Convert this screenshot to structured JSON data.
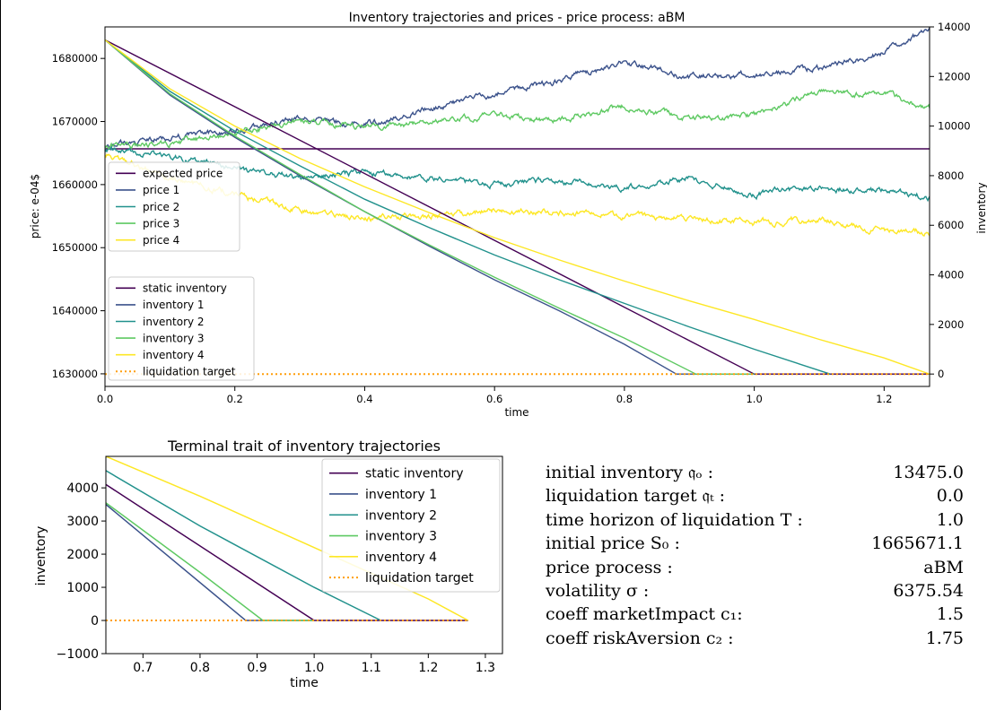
{
  "colors": {
    "static": "#440154",
    "s1": "#3b528b",
    "s2": "#21918c",
    "s3": "#5ec962",
    "s4": "#fde725",
    "target": "#ff9e0a"
  },
  "top_chart": {
    "title": "Inventory trajectories and prices - price process: aBM",
    "xlabel": "time",
    "ylabel_left": "price: e-04$",
    "ylabel_right": "inventory",
    "price_ticks": [
      "1630000",
      "1640000",
      "1650000",
      "1660000",
      "1670000",
      "1680000"
    ],
    "inv_ticks": [
      "0",
      "2000",
      "4000",
      "6000",
      "8000",
      "10000",
      "12000",
      "14000"
    ],
    "x_ticks": [
      "0.0",
      "0.2",
      "0.4",
      "0.6",
      "0.8",
      "1.0",
      "1.2"
    ],
    "legend_prices": [
      "expected price",
      "price 1",
      "price 2",
      "price 3",
      "price 4"
    ],
    "legend_inventory": [
      "static inventory",
      "inventory 1",
      "inventory 2",
      "inventory 3",
      "inventory 4",
      "liquidation target"
    ]
  },
  "bottom_chart": {
    "title": "Terminal trait of inventory trajectories",
    "xlabel": "time",
    "ylabel": "inventory",
    "y_ticks": [
      "−1000",
      "0",
      "1000",
      "2000",
      "3000",
      "4000"
    ],
    "x_ticks": [
      "0.7",
      "0.8",
      "0.9",
      "1.0",
      "1.1",
      "1.2",
      "1.3"
    ],
    "legend": [
      "static inventory",
      "inventory 1",
      "inventory 2",
      "inventory 3",
      "inventory 4",
      "liquidation target"
    ]
  },
  "parameters": [
    {
      "label": "initial inventory 𝔮ₒ :",
      "value": "13475.0"
    },
    {
      "label": "liquidation target 𝔮ₜ :",
      "value": "0.0"
    },
    {
      "label": "time horizon of liquidation T :",
      "value": "1.0"
    },
    {
      "label": "initial price S₀ :",
      "value": "1665671.1"
    },
    {
      "label": "price process :",
      "value": "aBM"
    },
    {
      "label": "volatility σ :",
      "value": "6375.54"
    },
    {
      "label": "coeff marketImpact c₁:",
      "value": "1.5"
    },
    {
      "label": "coeff riskAversion c₂ :",
      "value": "1.75"
    }
  ],
  "chart_data": [
    {
      "type": "line",
      "title": "Inventory trajectories and prices - price process: aBM",
      "xlabel": "time",
      "ylabel": "price: e-04$",
      "y2label": "inventory",
      "xlim": [
        0,
        1.27
      ],
      "ylim": [
        1628000,
        1685000
      ],
      "y2lim": [
        -500,
        14000
      ],
      "price_series": [
        {
          "name": "expected price",
          "x": [
            0,
            1.27
          ],
          "values": [
            1665671,
            1665671
          ]
        },
        {
          "name": "price 1",
          "x": [
            0,
            0.1,
            0.2,
            0.3,
            0.4,
            0.5,
            0.6,
            0.7,
            0.8,
            0.9,
            1.0,
            1.1,
            1.2,
            1.27
          ],
          "values": [
            1666000,
            1667500,
            1668500,
            1670500,
            1669500,
            1672000,
            1674500,
            1676500,
            1679500,
            1677000,
            1677500,
            1678500,
            1681000,
            1684500
          ]
        },
        {
          "name": "price 2",
          "x": [
            0,
            0.1,
            0.2,
            0.3,
            0.4,
            0.5,
            0.6,
            0.7,
            0.8,
            0.9,
            1.0,
            1.1,
            1.2,
            1.27
          ],
          "values": [
            1665500,
            1664500,
            1662500,
            1661000,
            1662000,
            1661000,
            1660000,
            1660500,
            1659500,
            1661000,
            1658500,
            1659500,
            1659000,
            1658000
          ]
        },
        {
          "name": "price 3",
          "x": [
            0,
            0.1,
            0.2,
            0.3,
            0.4,
            0.5,
            0.6,
            0.7,
            0.8,
            0.9,
            1.0,
            1.1,
            1.2,
            1.27
          ],
          "values": [
            1666000,
            1666500,
            1668000,
            1670000,
            1669000,
            1670000,
            1671000,
            1670000,
            1672500,
            1670500,
            1671000,
            1674500,
            1674500,
            1672000
          ]
        },
        {
          "name": "price 4",
          "x": [
            0,
            0.1,
            0.2,
            0.3,
            0.4,
            0.5,
            0.6,
            0.7,
            0.8,
            0.9,
            1.0,
            1.1,
            1.2,
            1.27
          ],
          "values": [
            1665000,
            1661000,
            1658500,
            1656000,
            1654500,
            1655000,
            1656000,
            1655500,
            1655000,
            1654500,
            1654000,
            1654500,
            1652500,
            1652500
          ]
        }
      ],
      "inventory_series": [
        {
          "name": "static inventory",
          "x": [
            0,
            1.0,
            1.27
          ],
          "values": [
            13475,
            0,
            0
          ]
        },
        {
          "name": "inventory 1",
          "x": [
            0,
            0.1,
            0.2,
            0.3,
            0.4,
            0.5,
            0.6,
            0.7,
            0.8,
            0.88,
            1.0
          ],
          "values": [
            13475,
            11250,
            9550,
            8000,
            6550,
            5150,
            3800,
            2550,
            1200,
            0,
            0
          ]
        },
        {
          "name": "inventory 2",
          "x": [
            0,
            0.1,
            0.2,
            0.3,
            0.4,
            0.5,
            0.6,
            0.7,
            0.8,
            0.9,
            1.0,
            1.117
          ],
          "values": [
            13475,
            11400,
            9800,
            8400,
            7050,
            5900,
            4800,
            3800,
            2850,
            1900,
            1000,
            0
          ]
        },
        {
          "name": "inventory 3",
          "x": [
            0,
            0.1,
            0.2,
            0.3,
            0.4,
            0.5,
            0.6,
            0.7,
            0.8,
            0.91,
            1.0
          ],
          "values": [
            13475,
            11300,
            9600,
            8050,
            6550,
            5200,
            3900,
            2650,
            1450,
            0,
            0
          ]
        },
        {
          "name": "inventory 4",
          "x": [
            0,
            0.1,
            0.2,
            0.3,
            0.4,
            0.5,
            0.6,
            0.7,
            0.8,
            0.9,
            1.0,
            1.1,
            1.2,
            1.27
          ],
          "values": [
            13475,
            11500,
            10000,
            8700,
            7550,
            6500,
            5500,
            4600,
            3750,
            2950,
            2200,
            1400,
            650,
            0
          ]
        },
        {
          "name": "liquidation target",
          "x": [
            0,
            1.27
          ],
          "values": [
            0,
            0
          ]
        }
      ]
    },
    {
      "type": "line",
      "title": "Terminal trait of inventory trajectories",
      "xlabel": "time",
      "ylabel": "inventory",
      "xlim": [
        0.635,
        1.33
      ],
      "ylim": [
        -1000,
        4950
      ],
      "series": [
        {
          "name": "static inventory",
          "x": [
            0.635,
            1.0,
            1.27
          ],
          "values": [
            4100,
            0,
            0
          ]
        },
        {
          "name": "inventory 1",
          "x": [
            0.635,
            0.88,
            1.0
          ],
          "values": [
            3500,
            0,
            0
          ]
        },
        {
          "name": "inventory 2",
          "x": [
            0.635,
            0.8,
            1.0,
            1.117
          ],
          "values": [
            4520,
            2850,
            1000,
            0
          ]
        },
        {
          "name": "inventory 3",
          "x": [
            0.635,
            0.8,
            0.91,
            1.0
          ],
          "values": [
            3550,
            1450,
            0,
            0
          ]
        },
        {
          "name": "inventory 4",
          "x": [
            0.635,
            0.8,
            1.0,
            1.2,
            1.27
          ],
          "values": [
            4950,
            3750,
            2200,
            650,
            0
          ]
        },
        {
          "name": "liquidation target",
          "x": [
            0.635,
            1.27
          ],
          "values": [
            0,
            0
          ]
        }
      ]
    }
  ]
}
